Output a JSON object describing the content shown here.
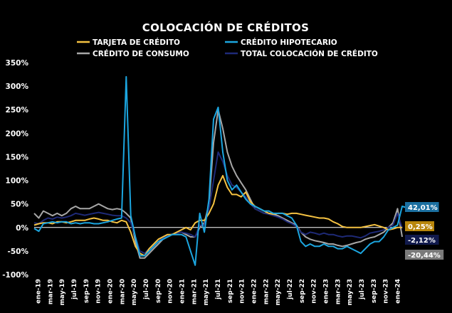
{
  "chart_data": {
    "type": "line",
    "title": "COLOCACIÓN DE CRÉDITOS",
    "xlabel": "",
    "ylabel": "",
    "ylim": [
      -100,
      350
    ],
    "yticks": [
      -100,
      -50,
      0,
      50,
      100,
      150,
      200,
      250,
      300,
      350
    ],
    "ytick_labels": [
      "-100%",
      "-50%",
      "0%",
      "50%",
      "100%",
      "150%",
      "200%",
      "250%",
      "300%",
      "350%"
    ],
    "x_labels": [
      "ene-19",
      "mar-19",
      "may-19",
      "jul-19",
      "sep-19",
      "nov-19",
      "ene-20",
      "mar-20",
      "may-20",
      "jul-20",
      "sep-20",
      "nov-20",
      "ene-21",
      "mar-21",
      "may-21",
      "jul-21",
      "sep-21",
      "nov-21",
      "ene-22",
      "mar-22",
      "may-22",
      "jul-22",
      "sep-22",
      "nov-22",
      "ene-23",
      "mar-23",
      "may-23",
      "jul-23",
      "sep-23",
      "nov-23",
      "ene-24"
    ],
    "series": [
      {
        "name": "TARJETA DE CRÉDITO",
        "color": "#f5c242",
        "end_label": "0,25%",
        "values": [
          5,
          8,
          10,
          10,
          8,
          12,
          12,
          10,
          12,
          15,
          15,
          15,
          18,
          20,
          18,
          15,
          15,
          12,
          10,
          15,
          12,
          -10,
          -40,
          -55,
          -60,
          -45,
          -35,
          -25,
          -20,
          -15,
          -15,
          -10,
          -5,
          0,
          -5,
          10,
          15,
          15,
          30,
          50,
          90,
          110,
          85,
          70,
          70,
          65,
          75,
          55,
          45,
          40,
          35,
          30,
          28,
          30,
          30,
          28,
          30,
          30,
          28,
          26,
          24,
          22,
          20,
          20,
          18,
          12,
          8,
          2,
          0,
          0,
          0,
          0,
          2,
          4,
          6,
          3,
          0,
          -5,
          -3,
          0,
          0
        ]
      },
      {
        "name": "CRÉDITO HIPOTECARIO",
        "color": "#1ca6e0",
        "end_label": "42,01%",
        "values": [
          -2,
          -8,
          8,
          10,
          12,
          10,
          12,
          12,
          8,
          10,
          8,
          10,
          10,
          8,
          8,
          10,
          12,
          15,
          18,
          20,
          320,
          25,
          -20,
          -60,
          -60,
          -50,
          -40,
          -30,
          -25,
          -20,
          -15,
          -15,
          -15,
          -20,
          -50,
          -80,
          30,
          -10,
          60,
          230,
          255,
          160,
          100,
          80,
          90,
          75,
          60,
          50,
          45,
          40,
          35,
          35,
          30,
          30,
          30,
          25,
          20,
          5,
          -30,
          -40,
          -35,
          -40,
          -40,
          -35,
          -40,
          -40,
          -45,
          -45,
          -40,
          -45,
          -50,
          -55,
          -45,
          -35,
          -30,
          -30,
          -20,
          -5,
          0,
          5,
          45,
          42
        ]
      },
      {
        "name": "CRÉDITO DE CONSUMO",
        "color": "#a7a7a7",
        "end_label": "-20,44%",
        "values": [
          30,
          20,
          35,
          30,
          25,
          30,
          25,
          30,
          40,
          45,
          40,
          40,
          40,
          45,
          50,
          45,
          40,
          38,
          40,
          38,
          30,
          20,
          -30,
          -65,
          -65,
          -55,
          -45,
          -35,
          -25,
          -20,
          -15,
          -12,
          -10,
          -15,
          -20,
          -20,
          0,
          10,
          50,
          180,
          250,
          210,
          160,
          130,
          110,
          95,
          80,
          60,
          40,
          35,
          30,
          30,
          28,
          25,
          20,
          15,
          10,
          5,
          -10,
          -20,
          -25,
          -28,
          -30,
          -32,
          -35,
          -35,
          -38,
          -40,
          -38,
          -35,
          -32,
          -30,
          -25,
          -22,
          -20,
          -15,
          -10,
          0,
          10,
          40,
          -20
        ]
      },
      {
        "name": "TOTAL COLOCACIÓN DE CRÉDITO",
        "color": "#1e2a78",
        "end_label": "-2,12%",
        "values": [
          10,
          8,
          15,
          20,
          18,
          22,
          20,
          22,
          25,
          30,
          28,
          26,
          28,
          30,
          32,
          30,
          28,
          26,
          25,
          25,
          20,
          10,
          -20,
          -50,
          -55,
          -45,
          -38,
          -30,
          -22,
          -18,
          -14,
          -12,
          -10,
          -12,
          -15,
          -20,
          5,
          5,
          40,
          100,
          160,
          140,
          110,
          90,
          85,
          75,
          65,
          50,
          40,
          35,
          30,
          28,
          25,
          22,
          18,
          12,
          8,
          2,
          -10,
          -15,
          -10,
          -12,
          -15,
          -12,
          -15,
          -15,
          -18,
          -20,
          -18,
          -18,
          -20,
          -22,
          -18,
          -12,
          -10,
          -8,
          -5,
          0,
          5,
          30,
          -2
        ]
      }
    ]
  }
}
